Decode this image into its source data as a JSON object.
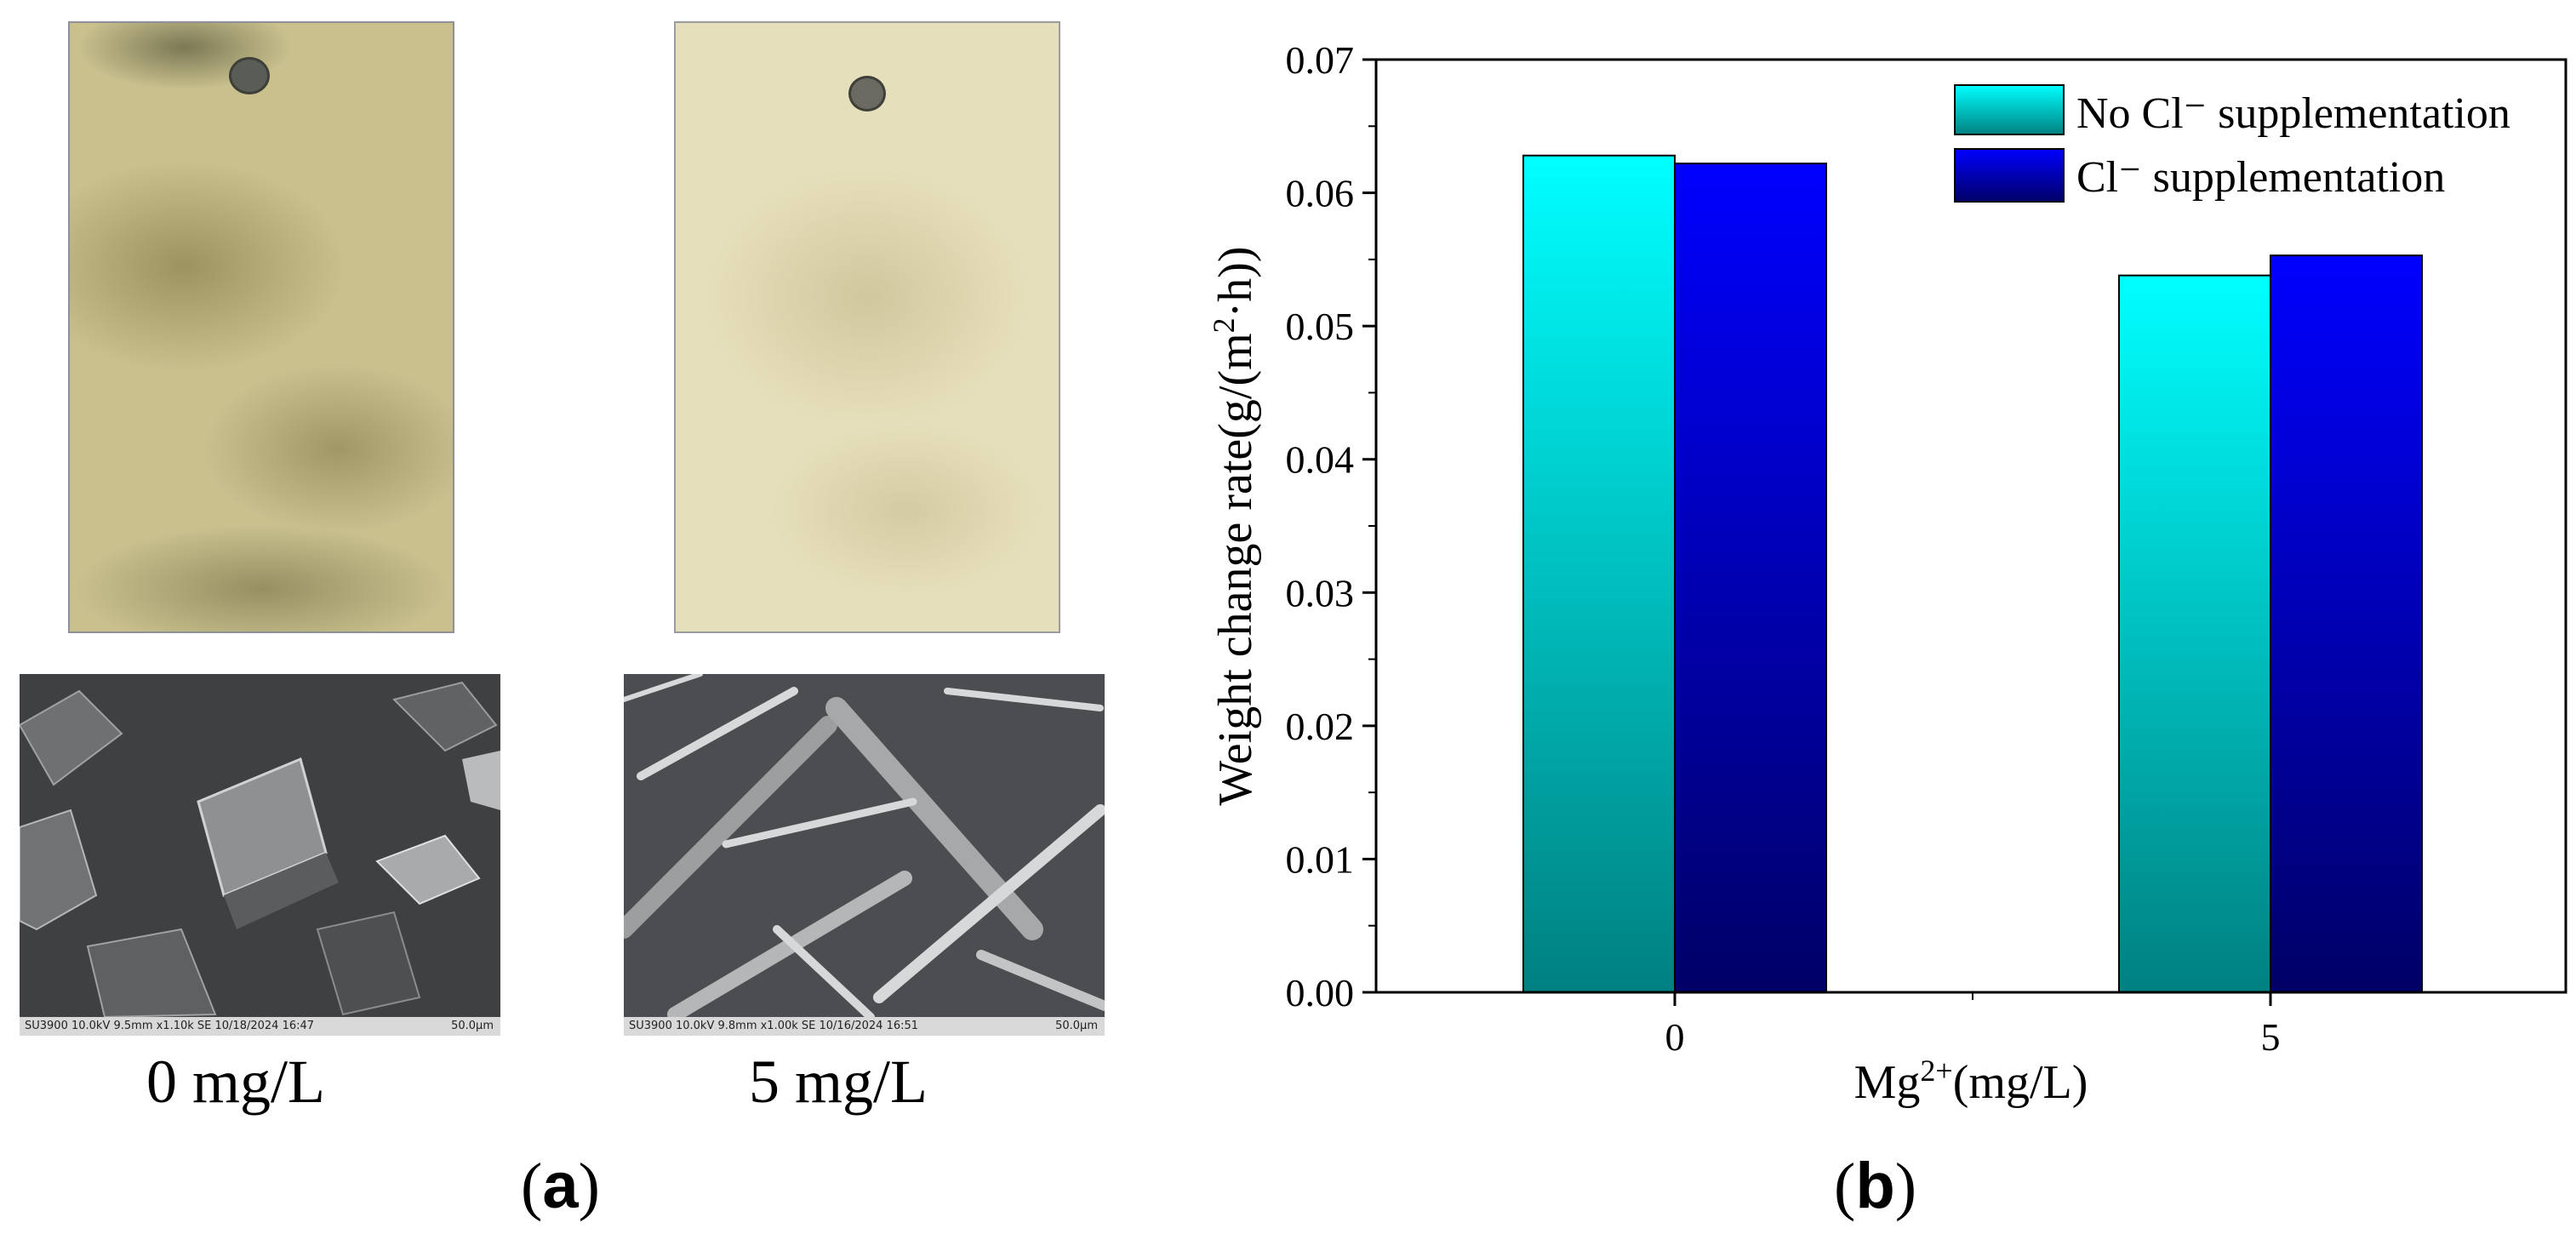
{
  "panel_a": {
    "label": "a",
    "samples": [
      {
        "caption": "0 mg/L",
        "sem_info": "SU3900 10.0kV 9.5mm x1.10k SE 10/18/2024 16:47",
        "sem_scale": "50.0µm"
      },
      {
        "caption": "5 mg/L",
        "sem_info": "SU3900 10.0kV 9.8mm x1.00k SE 10/16/2024 16:51",
        "sem_scale": "50.0µm"
      }
    ]
  },
  "panel_b": {
    "label": "b"
  },
  "chart_data": {
    "type": "bar",
    "categories": [
      "0",
      "5"
    ],
    "series": [
      {
        "name": "No Cl⁻ supplementation",
        "values": [
          0.0628,
          0.0538
        ],
        "color_top": "#00ffff",
        "color_bottom": "#008080"
      },
      {
        "name": "Cl⁻ supplementation",
        "values": [
          0.0622,
          0.0553
        ],
        "color_top": "#0000ff",
        "color_bottom": "#000066"
      }
    ],
    "xlabel": "Mg2+(mg/L)",
    "xlabel_parts": {
      "base": "Mg",
      "sup": "2+",
      "rest": "(mg/L)"
    },
    "ylabel": "Weight change rate(g/(m2·h))",
    "ylabel_parts": {
      "pre": "Weight change rate(g/(m",
      "sup": "2",
      "post": "·h))"
    },
    "ylim": [
      0,
      0.07
    ],
    "yticks": [
      "0.00",
      "0.01",
      "0.02",
      "0.03",
      "0.04",
      "0.05",
      "0.06",
      "0.07"
    ],
    "legend_position": "top-right",
    "grid": false
  }
}
